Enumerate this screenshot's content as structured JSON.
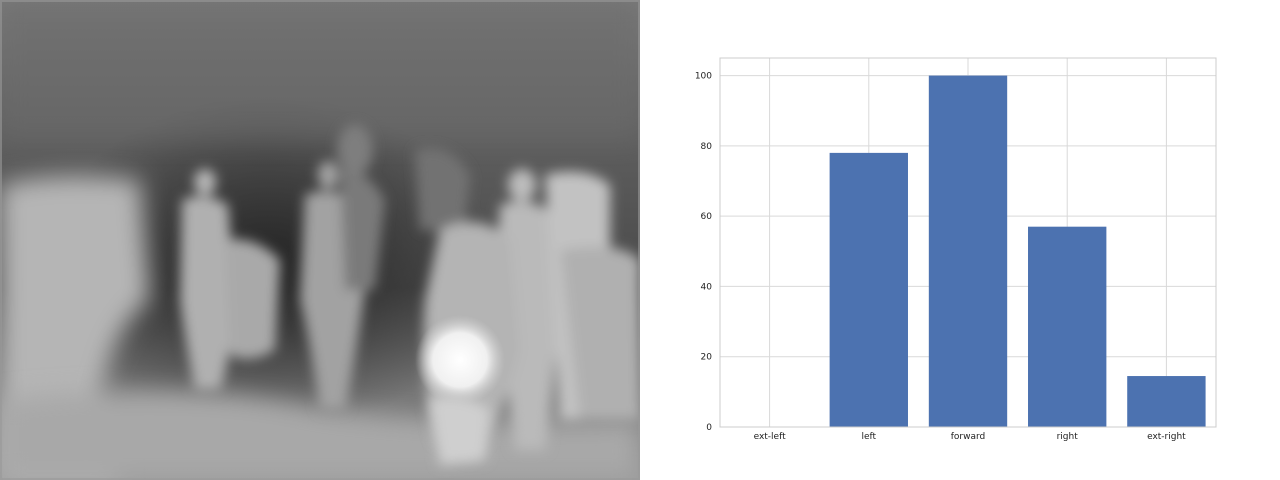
{
  "chart_data": {
    "type": "bar",
    "categories": [
      "ext-left",
      "left",
      "forward",
      "right",
      "ext-right"
    ],
    "values": [
      0,
      78,
      100,
      57,
      14.5
    ],
    "title": "",
    "xlabel": "",
    "ylabel": "",
    "ylim": [
      0,
      105
    ],
    "yticks": [
      0,
      20,
      40,
      60,
      80,
      100
    ],
    "grid": true,
    "bar_color": "#4c72b0"
  },
  "depth_image": {
    "style": "grayscale depth map",
    "icon": "depth-map-image"
  }
}
